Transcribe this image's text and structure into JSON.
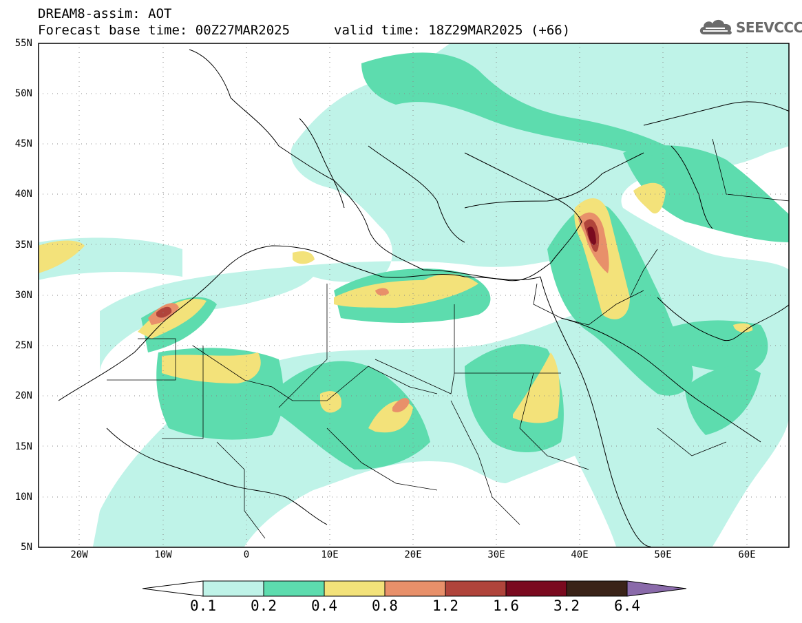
{
  "header": {
    "title_line1": "DREAM8-assim: AOT",
    "title_line2": "Forecast base time: 00Z27MAR2025",
    "valid_time": "valid time: 18Z29MAR2025 (+66)"
  },
  "logo": {
    "text": "SEEVCCC",
    "icon": "cloud-icon"
  },
  "map": {
    "variable": "AOT",
    "region": "North Africa, Middle East, Europe",
    "lat_labels": [
      "55N",
      "50N",
      "45N",
      "40N",
      "35N",
      "30N",
      "25N",
      "20N",
      "15N",
      "10N",
      "5N"
    ],
    "lon_labels": [
      "20W",
      "10W",
      "0",
      "10E",
      "20E",
      "30E",
      "40E",
      "50E",
      "60E"
    ],
    "grid": "dotted"
  },
  "legend": {
    "labels": [
      "0.1",
      "0.2",
      "0.4",
      "0.8",
      "1.2",
      "1.6",
      "3.2",
      "6.4"
    ],
    "colors": [
      "#ffffff",
      "#bff3e8",
      "#5ddcae",
      "#f3e27a",
      "#e8906a",
      "#b0443b",
      "#7a0a1f",
      "#3a2318",
      "#8a6aaa"
    ]
  }
}
